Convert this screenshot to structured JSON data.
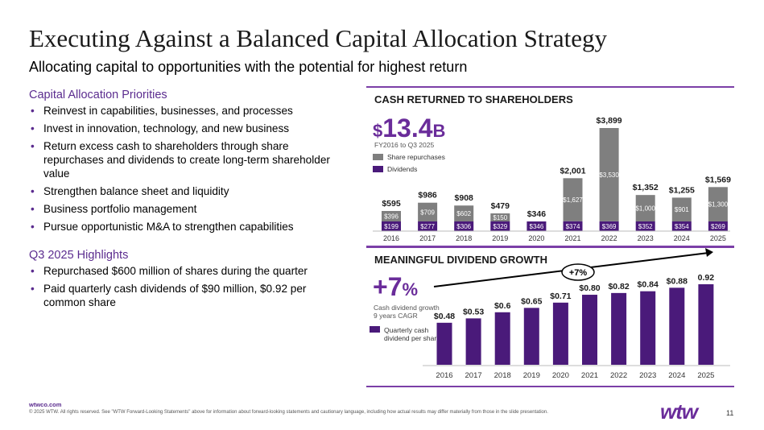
{
  "title": "Executing Against a Balanced Capital Allocation Strategy",
  "subtitle": "Allocating capital to opportunities with the potential for highest return",
  "priorities": {
    "heading": "Capital Allocation Priorities",
    "items": [
      "Reinvest in capabilities, businesses, and processes",
      "Invest in innovation, technology, and new business",
      "Return excess cash to shareholders through share repurchases and dividends to create long-term shareholder value",
      "Strengthen balance sheet and liquidity",
      "Business portfolio management",
      "Pursue opportunistic M&A to strengthen capabilities"
    ]
  },
  "highlights": {
    "heading": "Q3 2025 Highlights",
    "items": [
      "Repurchased $600 million of shares during the quarter",
      "Paid quarterly cash dividends of $90 million, $0.92 per common share"
    ]
  },
  "cash_panel": {
    "heading": "CASH RETURNED TO SHAREHOLDERS",
    "big_prefix": "$",
    "big_value": "13.4",
    "big_suffix": "B",
    "period": "FY2016 to Q3 2025",
    "legend_repurchases": "Share repurchases",
    "legend_dividends": "Dividends"
  },
  "dividend_panel": {
    "heading": "MEANINGFUL DIVIDEND GROWTH",
    "big_value": "+7",
    "big_suffix": "%",
    "note_line1": "Cash dividend growth",
    "note_line2": "9 years CAGR",
    "legend_line1": "Quarterly cash",
    "legend_line2": "dividend per share",
    "arrow_label": "+7%"
  },
  "colors": {
    "purple": "#5b2c8f",
    "dark_purple": "#4a1a7a",
    "gray": "#7f7f7f",
    "accent": "#7b3fa7"
  },
  "chart_data": [
    {
      "type": "bar",
      "stacked": true,
      "categories": [
        "2016",
        "2017",
        "2018",
        "2019",
        "2020",
        "2021",
        "2022",
        "2023",
        "2024",
        "2025"
      ],
      "series": [
        {
          "name": "Dividends",
          "values": [
            199,
            277,
            306,
            329,
            346,
            374,
            369,
            352,
            354,
            269
          ],
          "labels": [
            "$199",
            "$277",
            "$306",
            "$329",
            "$346",
            "$374",
            "$369",
            "$352",
            "$354",
            "$269"
          ]
        },
        {
          "name": "Share repurchases",
          "values": [
            396,
            709,
            602,
            150,
            0,
            1627,
            3530,
            1000,
            901,
            1300
          ],
          "labels": [
            "$396",
            "$709",
            "$602",
            "$150",
            "",
            "$1,627",
            "$3,530",
            "$1,000",
            "$901",
            "$1,300"
          ]
        }
      ],
      "totals": [
        "$595",
        "$986",
        "$908",
        "$479",
        "$346",
        "$2,001",
        "$3,899",
        "$1,352",
        "$1,255",
        "$1,569"
      ],
      "total_values": [
        595,
        986,
        908,
        479,
        346,
        2001,
        3899,
        1352,
        1255,
        1569
      ]
    },
    {
      "type": "bar",
      "categories": [
        "2016",
        "2017",
        "2018",
        "2019",
        "2020",
        "2021",
        "2022",
        "2023",
        "2024",
        "2025"
      ],
      "series": [
        {
          "name": "Quarterly cash dividend per share",
          "values": [
            0.48,
            0.53,
            0.6,
            0.65,
            0.71,
            0.8,
            0.82,
            0.84,
            0.88,
            0.92
          ]
        }
      ],
      "labels": [
        "$0.48",
        "$0.53",
        "$0.6",
        "$0.65",
        "$0.71",
        "$0.80",
        "$0.82",
        "$0.84",
        "$0.88",
        "0.92"
      ]
    }
  ],
  "footer": {
    "url": "wtwco.com",
    "copyright": "© 2025 WTW. All rights reserved. See \"WTW Forward-Looking Statements\" above for information about forward-looking statements and cautionary language, including how actual results may differ materially from those in the slide presentation.",
    "logo": "wtw",
    "page": "11"
  }
}
